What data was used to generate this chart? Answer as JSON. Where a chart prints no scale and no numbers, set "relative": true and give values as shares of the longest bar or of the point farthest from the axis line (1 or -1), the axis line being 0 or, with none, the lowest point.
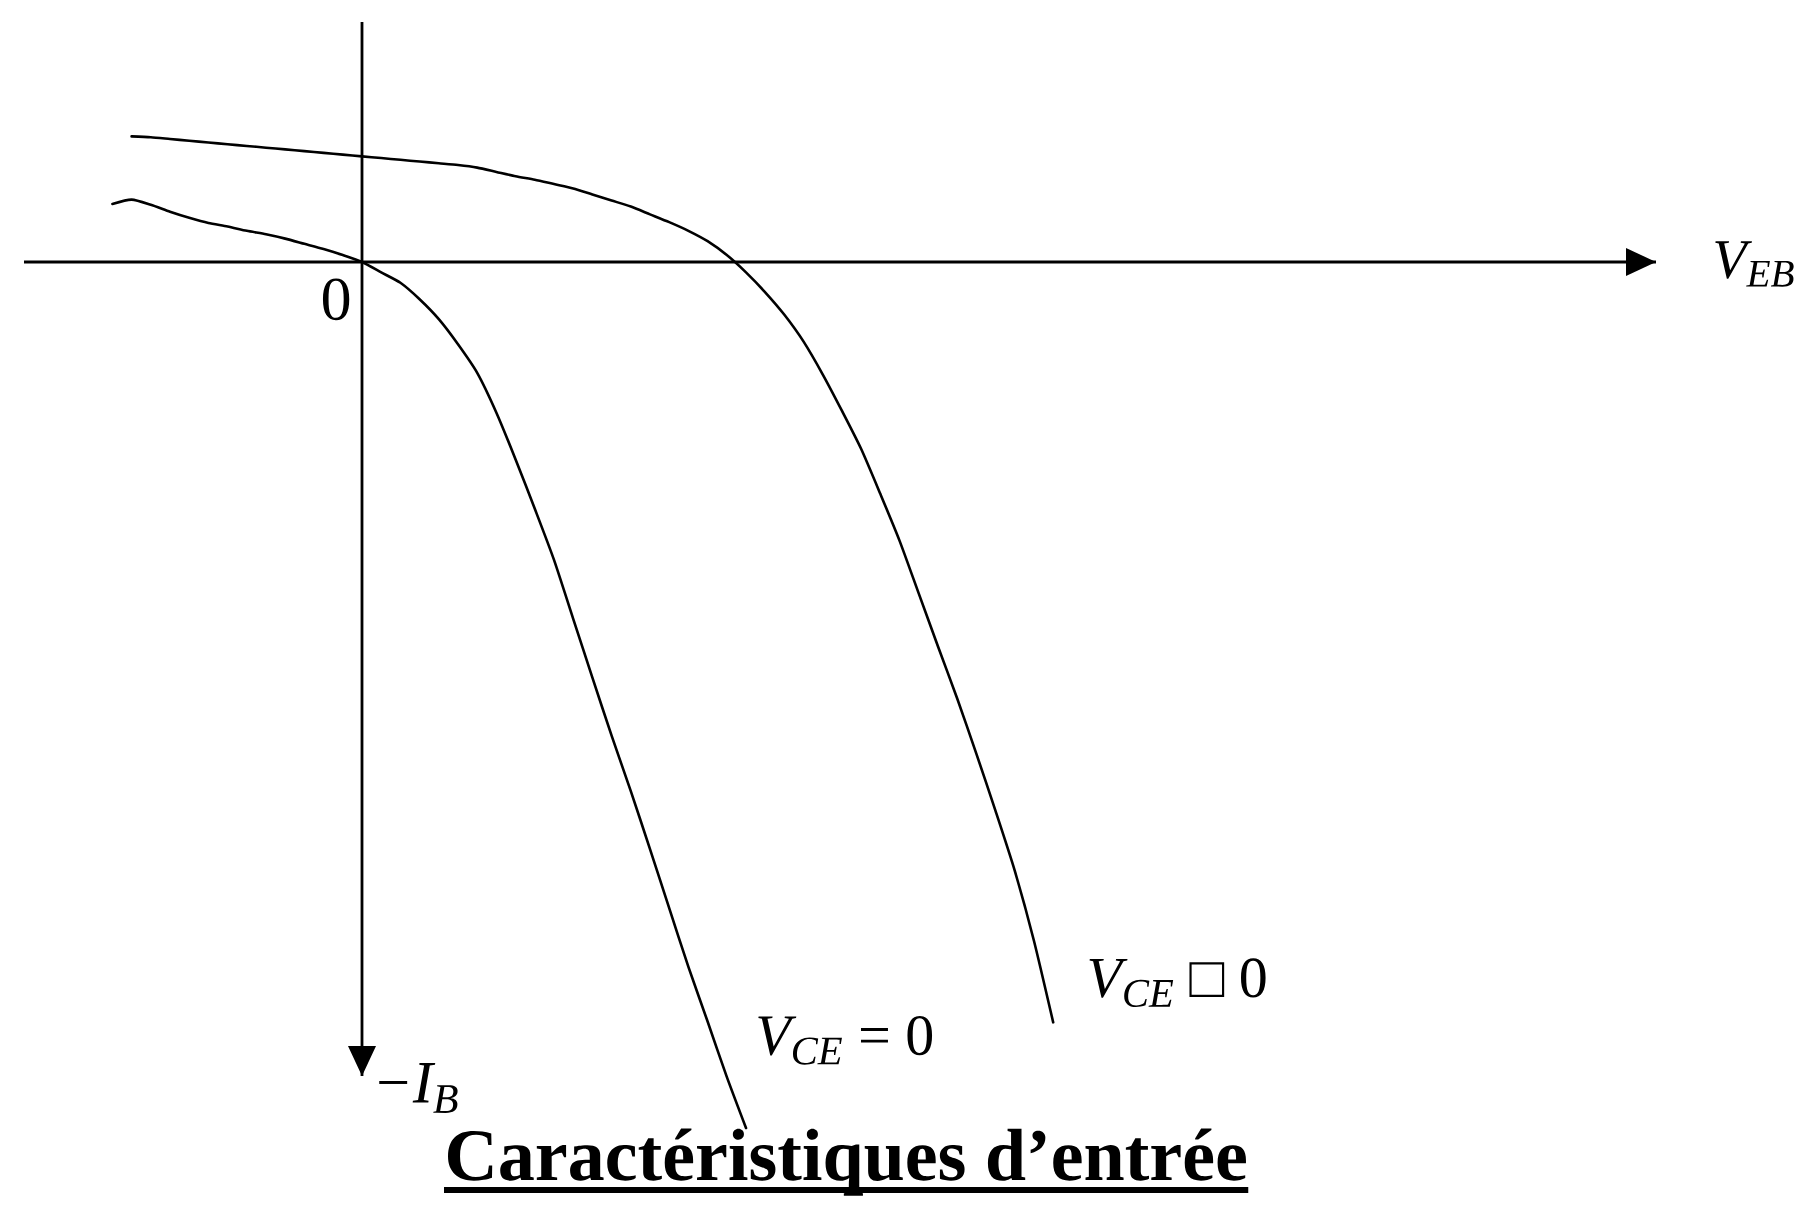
{
  "chart_data": {
    "type": "line",
    "title": "Caractéristiques d’entrée",
    "ylabel": "−I$_{B}$",
    "annotations": [
      "0",
      "V$_{EB}$"
    ],
    "relative": true,
    "categories": [
      null,
      null,
      null,
      null,
      null,
      null,
      null,
      null,
      null,
      null,
      null,
      null,
      null,
      null,
      null,
      null,
      null,
      null,
      null,
      null,
      null,
      null,
      null,
      null,
      null,
      null,
      null,
      null,
      null,
      null,
      null,
      null,
      null,
      null,
      null,
      null,
      null,
      null,
      null,
      null,
      null,
      null,
      null,
      null,
      null,
      null,
      null,
      null,
      null,
      null
    ],
    "series": [
      {
        "name": "*V$_{CE}$* = 0",
        "color": "#000000",
        "values": [
          0.067,
          0.072,
          0.066,
          0.058,
          0.051,
          0.045,
          0.041,
          0.036,
          0.032,
          0.027,
          0.021,
          0.015,
          0.008,
          0,
          -0.012,
          -0.024,
          -0.043,
          -0.066,
          -0.095,
          -0.128,
          -0.174,
          -0.228,
          -0.285,
          -0.344,
          -0.412,
          -0.48,
          -0.547,
          -0.611,
          -0.678,
          -0.746,
          -0.814,
          -0.877,
          -0.941,
          -1.0,
          null,
          null,
          null,
          null,
          null,
          null,
          null,
          null,
          null,
          null,
          null,
          null,
          null,
          null,
          null,
          null
        ]
      },
      {
        "name": "*V$_{CE}$* □ 0",
        "color": "#000000",
        "values": [
          null,
          0.145,
          0.144,
          0.142,
          0.14,
          0.138,
          0.136,
          0.134,
          0.132,
          0.13,
          0.128,
          0.126,
          0.124,
          0.122,
          0.12,
          0.118,
          0.116,
          0.114,
          0.112,
          0.109,
          0.104,
          0.099,
          0.095,
          0.09,
          0.085,
          0.078,
          0.071,
          0.064,
          0.055,
          0.046,
          0.036,
          0.024,
          0.008,
          -0.012,
          -0.035,
          -0.061,
          -0.092,
          -0.13,
          -0.172,
          -0.216,
          -0.268,
          -0.322,
          -0.383,
          -0.444,
          -0.504,
          -0.568,
          -0.634,
          -0.703,
          -0.784,
          -0.878
        ]
      }
    ]
  }
}
